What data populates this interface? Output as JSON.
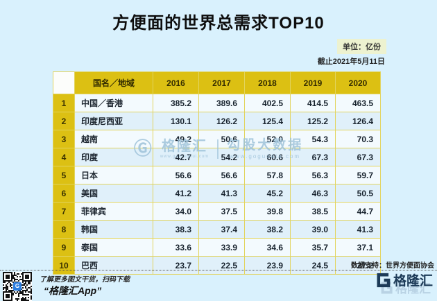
{
  "page": {
    "title": "方便面的世界总需求TOP10",
    "unit_badge": "单位：亿份",
    "as_of": "截止2021年5月11日"
  },
  "chart_data": {
    "type": "table",
    "title": "方便面的世界总需求TOP10",
    "unit": "亿份",
    "as_of": "2021-05-11",
    "columns": [
      "国名／地域",
      "2016",
      "2017",
      "2018",
      "2019",
      "2020"
    ],
    "rows": [
      {
        "rank": "1",
        "name": "中国／香港",
        "values": [
          385.2,
          389.6,
          402.5,
          414.5,
          463.5
        ]
      },
      {
        "rank": "2",
        "name": "印度尼西亚",
        "values": [
          130.1,
          126.2,
          125.4,
          125.2,
          126.4
        ]
      },
      {
        "rank": "3",
        "name": "越南",
        "values": [
          49.2,
          50.6,
          52.0,
          54.3,
          70.3
        ]
      },
      {
        "rank": "4",
        "name": "印度",
        "values": [
          42.7,
          54.2,
          60.6,
          67.3,
          67.3
        ]
      },
      {
        "rank": "5",
        "name": "日本",
        "values": [
          56.6,
          56.6,
          57.8,
          56.3,
          59.7
        ]
      },
      {
        "rank": "6",
        "name": "美国",
        "values": [
          41.2,
          41.3,
          45.2,
          46.3,
          50.5
        ]
      },
      {
        "rank": "7",
        "name": "菲律宾",
        "values": [
          34.0,
          37.5,
          39.8,
          38.5,
          44.7
        ]
      },
      {
        "rank": "8",
        "name": "韩国",
        "values": [
          38.3,
          37.4,
          38.2,
          39.0,
          41.3
        ]
      },
      {
        "rank": "9",
        "name": "泰国",
        "values": [
          33.6,
          33.9,
          34.6,
          35.7,
          37.1
        ]
      },
      {
        "rank": "10",
        "name": "巴西",
        "values": [
          23.7,
          22.5,
          23.9,
          24.5,
          27.2
        ]
      }
    ],
    "source": "世界方便面协会"
  },
  "watermark": {
    "g_glyph": "Ⓖ",
    "brand": "格隆汇",
    "brand_url": "www.gelonghui.com",
    "product": "勾股大数据",
    "product_url": "www.gogudata.com"
  },
  "footer": {
    "source": "数据支持：世界方便面协会",
    "qr_caption": "了解更多图文干货，扫码下载",
    "app_name": "“格隆汇App”",
    "brand": "格隆汇",
    "qr_logo_letter": "G"
  },
  "colors": {
    "background": "#d9f1fd",
    "header_gold": "#dcc013",
    "row_light": "#f3fafe",
    "row_dark": "#e0f0fa",
    "table_border": "#e2d45e",
    "navy": "#1c3a57",
    "badge_bg": "#edf2d0",
    "watermark": "#9fc3da",
    "qr_logo_blue": "#2b7de0"
  }
}
